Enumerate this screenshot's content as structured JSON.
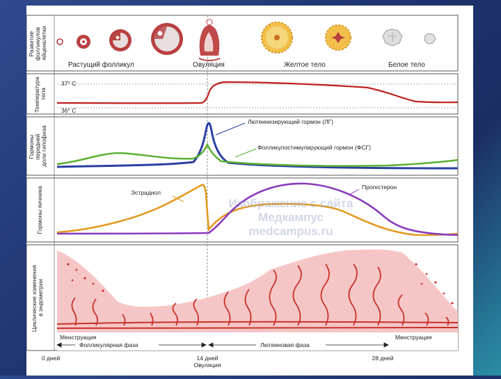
{
  "colors": {
    "background": "#1f3470",
    "slide": "#ffffff",
    "temperature": "#c01f1f",
    "lh": "#2b3fa3",
    "fsh": "#5bb030",
    "estradiol": "#e39a1f",
    "progesterone": "#8a3bbd",
    "endometrium": "#f6c6c6",
    "glands": "#c8312a"
  },
  "row_labels": {
    "follicles": [
      "Развитие",
      "фолликулов",
      "яйценклетки"
    ],
    "temperature": [
      "Температура",
      "тела"
    ],
    "pituitary": [
      "Гормоны",
      "передней",
      "доли гипофиза"
    ],
    "ovary": [
      "Гормоны яичника"
    ],
    "endometrium": [
      "Циклические изменения",
      "в эндометрии"
    ]
  },
  "stages": {
    "growing": "Растущий фолликул",
    "ovulation": "Овуляция",
    "yellow": "Желтое тело",
    "white": "Белое тело"
  },
  "temperature": {
    "high": "37° С",
    "low": "36° С"
  },
  "hormones": {
    "lh": "Лютеинизирующий гормон (ЛГ)",
    "fsh": "Фолликулостимулирующий гормон (ФСГ)",
    "estradiol": "Эстрадиол",
    "progesterone": "Прогестерон"
  },
  "watermark": [
    "Изображение с сайта",
    "Медкампус",
    "medcampus.ru"
  ],
  "menstruation": "Менструация",
  "phases": {
    "follicular": "Фолликулярная фаза",
    "luteal": "Лютеиновая фаза"
  },
  "days": {
    "start": "0 дней",
    "mid": "14 дней",
    "mid_sub": "Овуляция",
    "end": "28 дней"
  }
}
